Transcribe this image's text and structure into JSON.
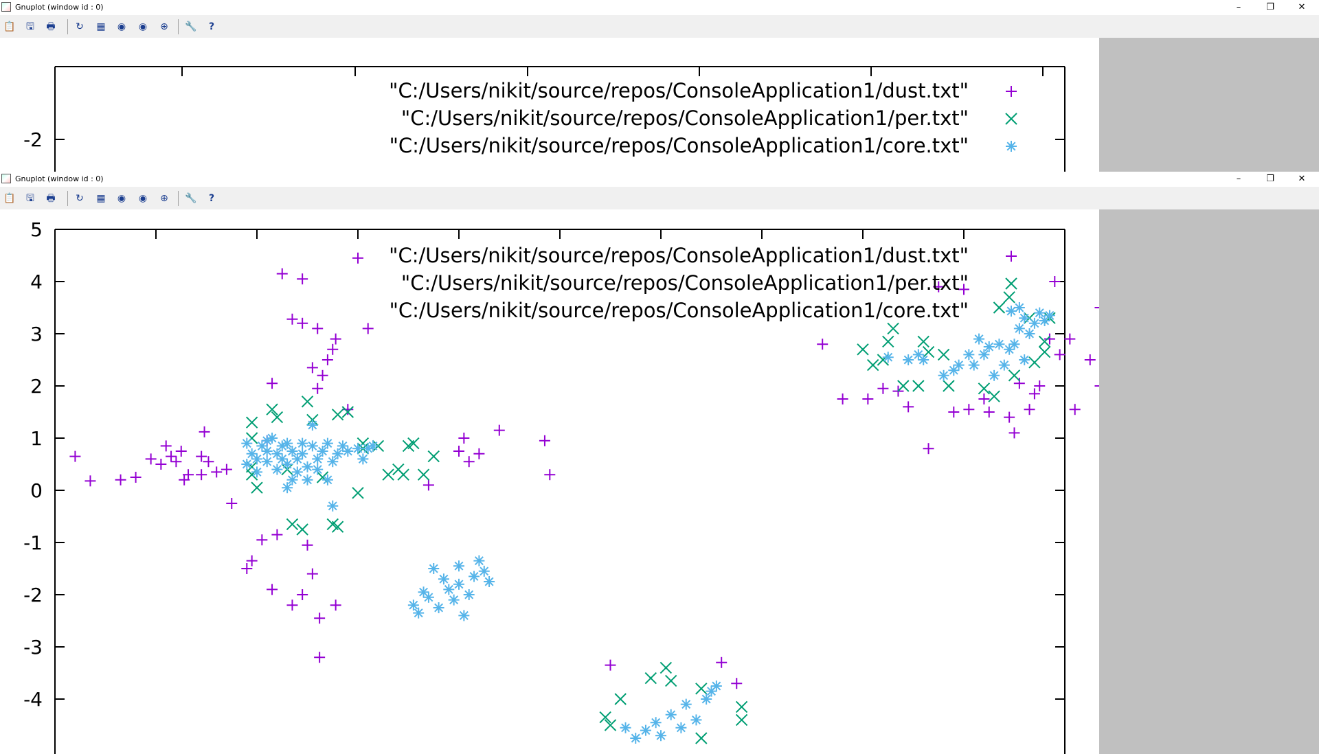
{
  "windows": [
    {
      "title": "Gnuplot (window id : 0)",
      "controls": {
        "minimize": "–",
        "maximize": "❐",
        "close": "✕"
      },
      "toolbar": [
        "clipboard-icon",
        "copy-icon",
        "print-icon",
        "replot-icon",
        "grid-icon",
        "zoom-prev-icon",
        "zoom-next-icon",
        "unzoom-icon",
        "options-icon",
        "help-icon"
      ]
    },
    {
      "title": "Gnuplot (window id : 0)",
      "controls": {
        "minimize": "–",
        "maximize": "❐",
        "close": "✕"
      },
      "toolbar": [
        "clipboard-icon",
        "copy-icon",
        "print-icon",
        "replot-icon",
        "grid-icon",
        "zoom-prev-icon",
        "zoom-next-icon",
        "unzoom-icon",
        "options-icon",
        "help-icon"
      ]
    }
  ],
  "colors": {
    "dust": "#9400d3",
    "per": "#009e73",
    "core": "#56b4e9",
    "gray_panel": "#c0c0c0",
    "toolbar_bg": "#f0f0f0"
  },
  "chart_data": [
    {
      "type": "scatter",
      "window": 1,
      "visible_y_ticks": [
        "-2"
      ],
      "legend": [
        "\"C:/Users/nikit/source/repos/ConsoleApplication1/dust.txt\"",
        "\"C:/Users/nikit/source/repos/ConsoleApplication1/per.txt\"",
        "\"C:/Users/nikit/source/repos/ConsoleApplication1/core.txt\""
      ],
      "legend_placement": "top-right"
    },
    {
      "type": "scatter",
      "window": 2,
      "xlim": [
        -2,
        8
      ],
      "ylim": [
        -5,
        5
      ],
      "y_ticks": [
        "5",
        "4",
        "3",
        "2",
        "1",
        "0",
        "-1",
        "-2",
        "-3",
        "-4"
      ],
      "legend_placement": "top-right",
      "series": [
        {
          "name": "\"C:/Users/nikit/source/repos/ConsoleApplication1/dust.txt\"",
          "marker": "plus",
          "points": [
            [
              -1.8,
              0.65
            ],
            [
              -1.65,
              0.18
            ],
            [
              -1.35,
              0.2
            ],
            [
              -1.2,
              0.25
            ],
            [
              -1.05,
              0.6
            ],
            [
              -0.95,
              0.5
            ],
            [
              -0.9,
              0.85
            ],
            [
              -0.85,
              0.65
            ],
            [
              -0.8,
              0.55
            ],
            [
              -0.75,
              0.75
            ],
            [
              -0.72,
              0.2
            ],
            [
              -0.68,
              0.3
            ],
            [
              -0.55,
              0.3
            ],
            [
              -0.55,
              0.65
            ],
            [
              -0.52,
              1.12
            ],
            [
              -0.48,
              0.55
            ],
            [
              -0.4,
              0.35
            ],
            [
              -0.3,
              0.4
            ],
            [
              -0.25,
              -0.25
            ],
            [
              -0.1,
              -1.5
            ],
            [
              -0.05,
              -1.35
            ],
            [
              0.05,
              -0.95
            ],
            [
              0.1,
              0.95
            ],
            [
              0.15,
              2.05
            ],
            [
              0.15,
              -1.9
            ],
            [
              0.2,
              -0.85
            ],
            [
              0.25,
              4.15
            ],
            [
              0.35,
              3.28
            ],
            [
              0.35,
              -2.2
            ],
            [
              0.45,
              4.05
            ],
            [
              0.45,
              3.2
            ],
            [
              0.45,
              -2.0
            ],
            [
              0.5,
              -1.05
            ],
            [
              0.55,
              2.35
            ],
            [
              0.55,
              -1.6
            ],
            [
              0.6,
              1.95
            ],
            [
              0.6,
              3.1
            ],
            [
              0.62,
              -2.45
            ],
            [
              0.62,
              -3.2
            ],
            [
              0.65,
              2.2
            ],
            [
              0.7,
              2.5
            ],
            [
              0.75,
              2.7
            ],
            [
              0.78,
              2.9
            ],
            [
              0.78,
              -2.2
            ],
            [
              0.9,
              1.55
            ],
            [
              1.0,
              4.45
            ],
            [
              1.1,
              3.1
            ],
            [
              1.7,
              0.1
            ],
            [
              2.0,
              0.75
            ],
            [
              2.05,
              1.0
            ],
            [
              2.1,
              0.55
            ],
            [
              2.2,
              0.7
            ],
            [
              2.4,
              1.15
            ],
            [
              2.85,
              0.95
            ],
            [
              2.9,
              0.3
            ],
            [
              3.5,
              -3.35
            ],
            [
              4.6,
              -3.3
            ],
            [
              4.75,
              -3.7
            ],
            [
              5.6,
              2.8
            ],
            [
              5.8,
              1.75
            ],
            [
              6.05,
              1.75
            ],
            [
              6.2,
              1.95
            ],
            [
              6.35,
              1.9
            ],
            [
              6.45,
              1.6
            ],
            [
              6.65,
              0.8
            ],
            [
              6.75,
              3.9
            ],
            [
              6.9,
              1.5
            ],
            [
              7.0,
              3.85
            ],
            [
              7.05,
              1.55
            ],
            [
              7.2,
              1.75
            ],
            [
              7.25,
              1.5
            ],
            [
              7.45,
              1.4
            ],
            [
              7.5,
              1.1
            ],
            [
              7.55,
              2.05
            ],
            [
              7.65,
              1.55
            ],
            [
              7.7,
              1.85
            ],
            [
              7.75,
              2.0
            ],
            [
              7.85,
              2.9
            ],
            [
              7.95,
              2.6
            ],
            [
              8.05,
              2.9
            ],
            [
              8.1,
              1.55
            ],
            [
              8.25,
              2.5
            ],
            [
              8.35,
              2.0
            ],
            [
              7.9,
              4.0
            ],
            [
              8.35,
              3.5
            ]
          ]
        },
        {
          "name": "\"C:/Users/nikit/source/repos/ConsoleApplication1/per.txt\"",
          "marker": "cross",
          "points": [
            [
              -0.05,
              1.3
            ],
            [
              -0.05,
              1.0
            ],
            [
              -0.05,
              0.45
            ],
            [
              -0.05,
              0.3
            ],
            [
              0.0,
              0.05
            ],
            [
              0.15,
              1.55
            ],
            [
              0.2,
              1.4
            ],
            [
              0.3,
              0.4
            ],
            [
              0.35,
              -0.65
            ],
            [
              0.45,
              -0.75
            ],
            [
              0.5,
              1.7
            ],
            [
              0.55,
              1.35
            ],
            [
              0.65,
              0.25
            ],
            [
              0.75,
              -0.65
            ],
            [
              0.8,
              1.45
            ],
            [
              0.8,
              -0.7
            ],
            [
              0.9,
              1.5
            ],
            [
              1.0,
              -0.05
            ],
            [
              1.05,
              0.9
            ],
            [
              1.05,
              0.8
            ],
            [
              1.2,
              0.85
            ],
            [
              1.3,
              0.3
            ],
            [
              1.4,
              0.4
            ],
            [
              1.45,
              0.3
            ],
            [
              1.5,
              0.85
            ],
            [
              1.55,
              0.9
            ],
            [
              1.65,
              0.3
            ],
            [
              1.75,
              0.65
            ],
            [
              3.45,
              -4.35
            ],
            [
              3.5,
              -4.5
            ],
            [
              3.6,
              -4.0
            ],
            [
              3.9,
              -3.6
            ],
            [
              4.05,
              -3.4
            ],
            [
              4.1,
              -3.65
            ],
            [
              4.4,
              -4.75
            ],
            [
              4.4,
              -3.8
            ],
            [
              4.8,
              -4.4
            ],
            [
              4.8,
              -4.15
            ],
            [
              6.0,
              2.7
            ],
            [
              6.1,
              2.4
            ],
            [
              6.2,
              2.5
            ],
            [
              6.25,
              2.85
            ],
            [
              6.3,
              3.1
            ],
            [
              6.4,
              2.0
            ],
            [
              6.55,
              2.0
            ],
            [
              6.6,
              2.85
            ],
            [
              6.65,
              2.65
            ],
            [
              6.8,
              2.6
            ],
            [
              6.85,
              2.0
            ],
            [
              7.2,
              1.95
            ],
            [
              7.3,
              1.8
            ],
            [
              7.35,
              3.5
            ],
            [
              7.45,
              3.7
            ],
            [
              7.65,
              3.3
            ],
            [
              7.7,
              2.45
            ],
            [
              7.8,
              2.65
            ],
            [
              7.8,
              2.85
            ],
            [
              7.85,
              3.3
            ],
            [
              7.5,
              2.2
            ]
          ]
        },
        {
          "name": "\"C:/Users/nikit/source/repos/ConsoleApplication1/core.txt\"",
          "marker": "star",
          "points": [
            [
              -0.1,
              0.9
            ],
            [
              -0.1,
              0.5
            ],
            [
              -0.05,
              0.7
            ],
            [
              0.0,
              0.6
            ],
            [
              0.0,
              0.35
            ],
            [
              0.05,
              0.85
            ],
            [
              0.1,
              0.75
            ],
            [
              0.1,
              0.95
            ],
            [
              0.1,
              0.55
            ],
            [
              0.15,
              1.0
            ],
            [
              0.2,
              0.7
            ],
            [
              0.2,
              0.4
            ],
            [
              0.25,
              0.85
            ],
            [
              0.25,
              0.6
            ],
            [
              0.3,
              0.9
            ],
            [
              0.3,
              0.5
            ],
            [
              0.3,
              0.05
            ],
            [
              0.35,
              0.2
            ],
            [
              0.35,
              0.75
            ],
            [
              0.4,
              0.6
            ],
            [
              0.4,
              0.35
            ],
            [
              0.45,
              0.9
            ],
            [
              0.45,
              0.7
            ],
            [
              0.5,
              0.45
            ],
            [
              0.5,
              0.2
            ],
            [
              0.55,
              1.25
            ],
            [
              0.55,
              0.85
            ],
            [
              0.6,
              0.6
            ],
            [
              0.6,
              0.4
            ],
            [
              0.65,
              0.75
            ],
            [
              0.7,
              0.9
            ],
            [
              0.7,
              0.2
            ],
            [
              0.75,
              0.55
            ],
            [
              0.75,
              -0.3
            ],
            [
              0.8,
              0.7
            ],
            [
              0.85,
              0.85
            ],
            [
              0.9,
              0.75
            ],
            [
              1.0,
              0.8
            ],
            [
              1.05,
              0.6
            ],
            [
              1.1,
              0.8
            ],
            [
              1.15,
              0.85
            ],
            [
              1.55,
              -2.2
            ],
            [
              1.6,
              -2.35
            ],
            [
              1.65,
              -1.95
            ],
            [
              1.7,
              -2.05
            ],
            [
              1.75,
              -1.5
            ],
            [
              1.8,
              -2.25
            ],
            [
              1.85,
              -1.7
            ],
            [
              1.9,
              -1.9
            ],
            [
              1.95,
              -2.1
            ],
            [
              2.0,
              -1.45
            ],
            [
              2.0,
              -1.8
            ],
            [
              2.05,
              -2.4
            ],
            [
              2.1,
              -2.0
            ],
            [
              2.15,
              -1.65
            ],
            [
              2.2,
              -1.35
            ],
            [
              2.25,
              -1.55
            ],
            [
              2.3,
              -1.75
            ],
            [
              3.65,
              -4.55
            ],
            [
              3.75,
              -4.75
            ],
            [
              3.85,
              -4.6
            ],
            [
              3.95,
              -4.45
            ],
            [
              4.0,
              -4.7
            ],
            [
              4.1,
              -4.3
            ],
            [
              4.2,
              -4.55
            ],
            [
              4.25,
              -4.1
            ],
            [
              4.35,
              -4.4
            ],
            [
              4.45,
              -4.0
            ],
            [
              4.5,
              -3.85
            ],
            [
              4.55,
              -3.75
            ],
            [
              6.25,
              2.55
            ],
            [
              6.45,
              2.5
            ],
            [
              6.55,
              2.6
            ],
            [
              6.6,
              2.5
            ],
            [
              6.8,
              2.2
            ],
            [
              6.9,
              2.3
            ],
            [
              6.95,
              2.4
            ],
            [
              7.05,
              2.6
            ],
            [
              7.1,
              2.4
            ],
            [
              7.15,
              2.9
            ],
            [
              7.2,
              2.6
            ],
            [
              7.25,
              2.75
            ],
            [
              7.3,
              2.2
            ],
            [
              7.35,
              2.8
            ],
            [
              7.4,
              2.4
            ],
            [
              7.45,
              2.7
            ],
            [
              7.5,
              2.8
            ],
            [
              7.55,
              3.1
            ],
            [
              7.6,
              3.3
            ],
            [
              7.65,
              3.0
            ],
            [
              7.7,
              3.2
            ],
            [
              7.75,
              3.4
            ],
            [
              7.8,
              3.25
            ],
            [
              7.85,
              3.35
            ],
            [
              7.55,
              3.5
            ],
            [
              7.6,
              2.5
            ]
          ]
        }
      ]
    }
  ]
}
